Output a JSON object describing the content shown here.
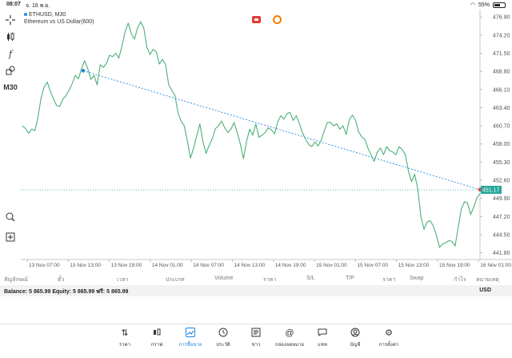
{
  "status_bar": {
    "time": "08:07",
    "date": "จ. 16 พ.ย.",
    "battery": "55%",
    "battery_level": 0.55
  },
  "toolbar": {
    "timeframe": "M30",
    "icons": [
      "crosshair-icon",
      "indicators-icon",
      "function-icon",
      "objects-icon",
      "zoom-icon",
      "add-window-icon"
    ]
  },
  "chart": {
    "symbol": "ETHUSD",
    "timeframe": "M30",
    "description": "Ethereum vs US Dollar(600)",
    "current_price": "451.17",
    "price_labels": [
      "476.90",
      "474.20",
      "471.50",
      "468.80",
      "466.10",
      "463.40",
      "460.70",
      "458.00",
      "455.30",
      "452.60",
      "449.90",
      "447.20",
      "444.50",
      "441.80"
    ],
    "time_labels": [
      "13 Nov 07:00",
      "13 Nov 13:00",
      "13 Nov 19:00",
      "14 Nov 01:00",
      "14 Nov 07:00",
      "14 Nov 13:00",
      "14 Nov 19:00",
      "15 Nov 01:00",
      "15 Nov 07:00",
      "15 Nov 13:00",
      "15 Nov 19:00",
      "16 Nov 01:00"
    ]
  },
  "chart_data": {
    "type": "line",
    "ylim": [
      440.8,
      478.0
    ],
    "values": [
      460.7,
      460.3,
      459.6,
      460.2,
      460.0,
      462.0,
      464.8,
      466.5,
      467.2,
      465.8,
      464.7,
      463.7,
      463.6,
      464.7,
      465.2,
      466.0,
      467.0,
      468.2,
      467.7,
      469.2,
      470.4,
      469.2,
      467.6,
      468.2,
      466.8,
      469.8,
      469.4,
      470.0,
      471.2,
      471.0,
      471.5,
      470.8,
      472.6,
      474.7,
      476.0,
      474.4,
      473.6,
      475.3,
      476.2,
      475.2,
      472.4,
      471.3,
      472.1,
      471.7,
      469.9,
      470.6,
      469.8,
      466.8,
      466.0,
      465.2,
      462.6,
      461.4,
      460.7,
      458.4,
      455.9,
      457.4,
      459.2,
      461.0,
      458.3,
      456.6,
      457.8,
      458.8,
      460.3,
      460.7,
      461.4,
      460.4,
      459.7,
      460.2,
      461.2,
      459.7,
      458.0,
      455.8,
      458.4,
      460.2,
      459.3,
      461.0,
      459.0,
      459.3,
      459.7,
      460.4,
      460.1,
      459.5,
      461.3,
      462.2,
      461.7,
      462.5,
      462.7,
      461.5,
      462.2,
      461.0,
      459.6,
      458.7,
      457.9,
      457.6,
      458.3,
      457.7,
      458.6,
      460.0,
      461.2,
      461.2,
      460.7,
      461.0,
      460.2,
      460.7,
      459.4,
      461.6,
      462.3,
      461.5,
      459.8,
      459.1,
      458.7,
      457.4,
      456.4,
      455.4,
      456.8,
      457.4,
      456.4,
      457.6,
      457.0,
      456.8,
      456.4,
      457.6,
      457.2,
      456.4,
      454.0,
      452.4,
      453.5,
      451.3,
      447.2,
      445.3,
      446.4,
      446.6,
      445.8,
      444.4,
      442.6,
      443.1,
      443.3,
      443.6,
      443.5,
      442.8,
      445.6,
      448.3,
      449.4,
      449.2,
      447.5,
      448.6,
      450.0,
      450.6
    ],
    "trendline": {
      "from": {
        "x": "13 Nov 13:00",
        "y": 468.9
      },
      "to": {
        "x": "16 Nov 01:00",
        "y": 451.2
      }
    },
    "current_price": 451.17,
    "grid": false
  },
  "trade_table": {
    "headers": [
      "สัญลักษณ์",
      "ตั๋ว",
      "เวลา",
      "ประเภท",
      "Volume",
      "ราคา",
      "S/L",
      "T/P",
      "ราคา",
      "Swap",
      "กำไร",
      "หมายเหตุ"
    ],
    "balance_text": "Balance: 5 865.99 Equity: 5 865.99 ฟรี: 5 865.99",
    "currency": "USD"
  },
  "tabs": [
    {
      "label": "ราคา",
      "icon": "quotes-icon"
    },
    {
      "label": "กราฟ",
      "icon": "chart-icon"
    },
    {
      "label": "การซื้อขาย",
      "icon": "trade-icon",
      "active": true
    },
    {
      "label": "ประวัติ",
      "icon": "history-icon"
    },
    {
      "label": "ข่าว",
      "icon": "news-icon"
    },
    {
      "label": "กล่องจดหมาย",
      "icon": "mailbox-icon"
    },
    {
      "label": "แชท",
      "icon": "chat-icon"
    },
    {
      "label": "บัญชี",
      "icon": "account-icon"
    },
    {
      "label": "การตั้งค่า",
      "icon": "settings-icon"
    }
  ]
}
